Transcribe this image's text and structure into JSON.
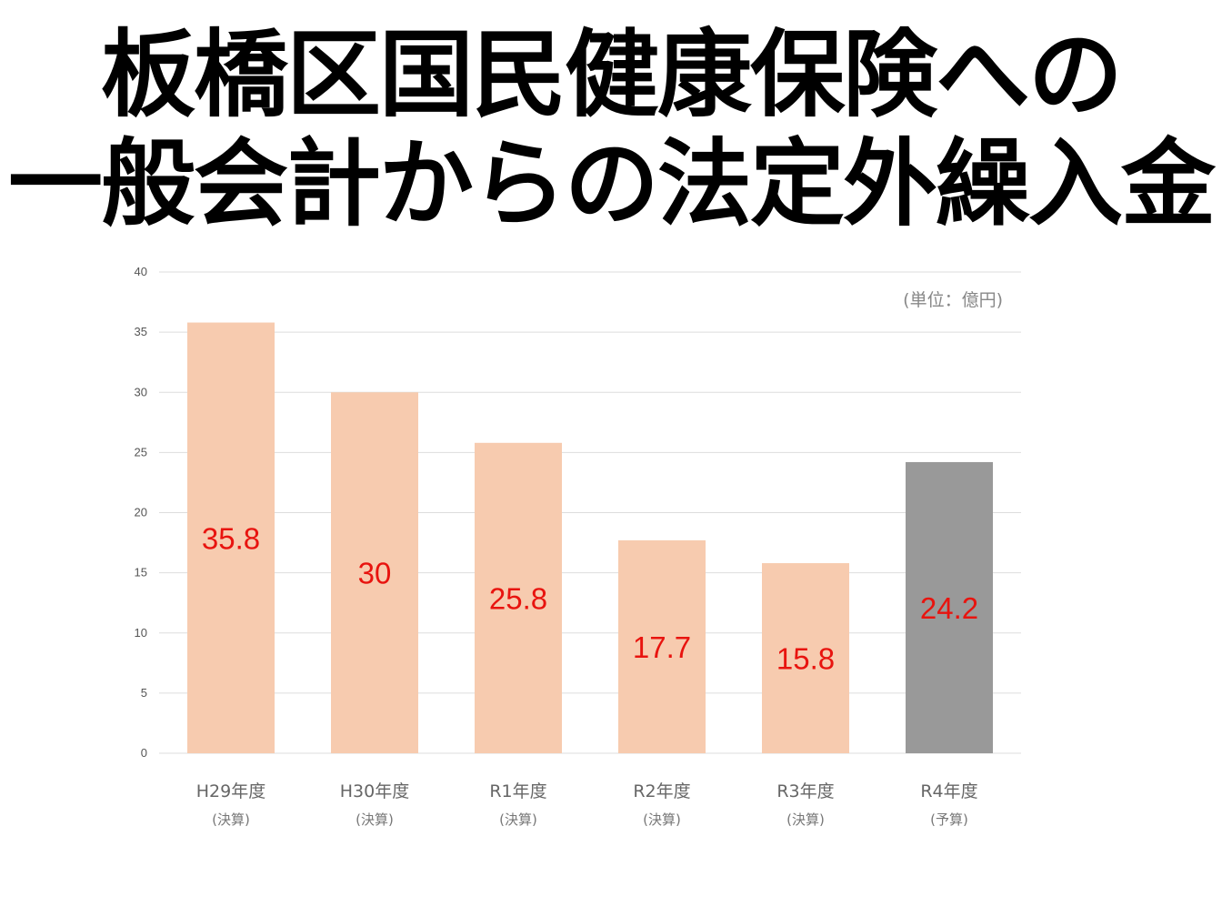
{
  "title_lines": [
    "板橋区国民健康保険への",
    "一般会計からの法定外繰入金"
  ],
  "chart_data": {
    "type": "bar",
    "title": "板橋区国民健康保険への一般会計からの法定外繰入金",
    "unit_label": "(単位：億円)",
    "categories": [
      "H29年度",
      "H30年度",
      "R1年度",
      "R2年度",
      "R3年度",
      "R4年度"
    ],
    "category_sublabels": [
      "(決算)",
      "(決算)",
      "(決算)",
      "(決算)",
      "(決算)",
      "(予算)"
    ],
    "values": [
      35.8,
      30,
      25.8,
      17.7,
      15.8,
      24.2
    ],
    "value_labels": [
      "35.8",
      "30",
      "25.8",
      "17.7",
      "15.8",
      "24.2"
    ],
    "ylim": [
      0,
      40
    ],
    "yticks": [
      0,
      5,
      10,
      15,
      20,
      25,
      30,
      35,
      40
    ],
    "grid": true,
    "colors": {
      "actual_bar": "#f7cbaf",
      "budget_bar": "#999999",
      "bar_colors": [
        "#f7cbaf",
        "#f7cbaf",
        "#f7cbaf",
        "#f7cbaf",
        "#f7cbaf",
        "#999999"
      ],
      "value_label": "#e8140f",
      "grid": "#dddddd"
    }
  }
}
